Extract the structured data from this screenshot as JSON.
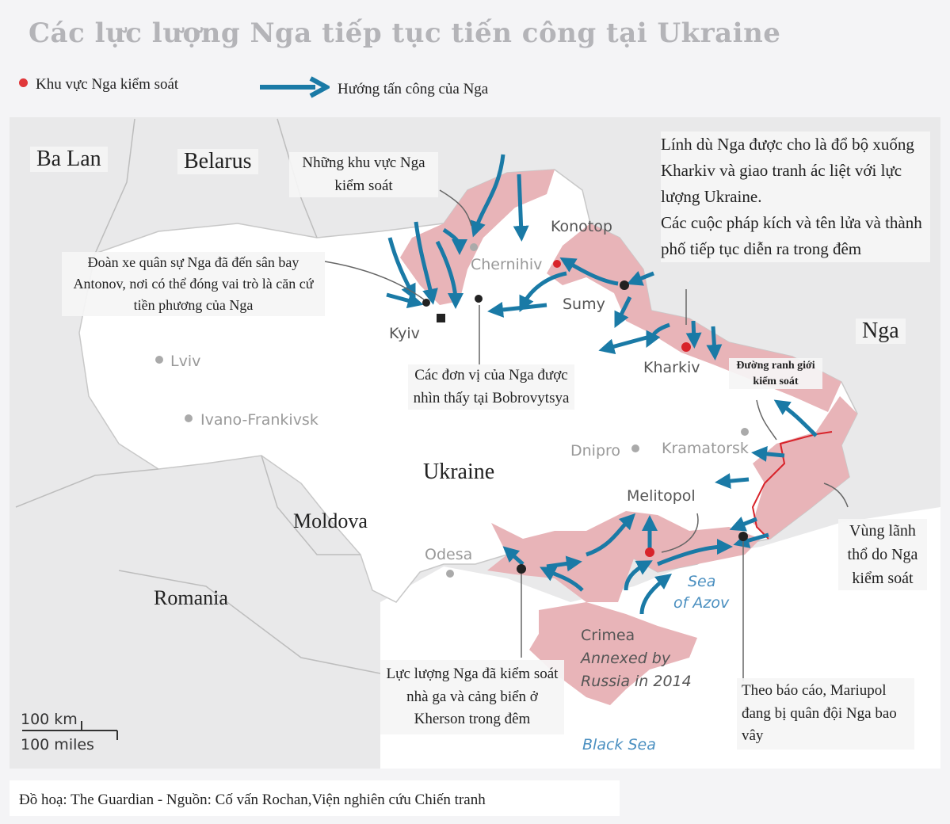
{
  "title": "Các lực lượng Nga tiếp tục tiến công tại Ukraine",
  "legend": {
    "controlled_label": "Khu vực Nga kiểm soát",
    "attack_label": "Hướng tấn công của Nga",
    "controlled_color": "#e0373a",
    "arrow_color": "#1a7aa6"
  },
  "colors": {
    "occupied": "#e8b4b8",
    "ukraine": "#ffffff",
    "neighbors": "#e8e8e8",
    "control_line": "#d8232a"
  },
  "countries": {
    "poland": "Ba Lan",
    "belarus": "Belarus",
    "russia": "Nga",
    "ukraine": "Ukraine",
    "moldova": "Moldova",
    "romania": "Romania"
  },
  "cities": {
    "konotop": "Konotop",
    "chernihiv": "Chernihiv",
    "sumy": "Sumy",
    "kyiv": "Kyiv",
    "kharkiv": "Kharkiv",
    "lviv": "Lviv",
    "ivano_frankivsk": "Ivano-Frankivsk",
    "dnipro": "Dnipro",
    "kramatorsk": "Kramatorsk",
    "melitopol": "Melitopol",
    "odesa": "Odesa",
    "crimea": "Crimea",
    "crimea_note1": "Annexed by",
    "crimea_note2": "Russia in 2014"
  },
  "seas": {
    "azov1": "Sea",
    "azov2": "of Azov",
    "black": "Black Sea"
  },
  "annotations": {
    "controlled_areas": "Những khu vực Nga kiểm soát",
    "convoy": "Đoàn xe quân sự Nga đã đến sân bay Antonov, nơi có thể đóng vai trò là căn cứ tiền phương của Nga",
    "bobrovytsya": "Các đơn vị của Nga được nhìn thấy tại Bobrovytsya",
    "kharkiv": "Lính dù Nga được cho là đổ bộ xuống Kharkiv và giao tranh ác liệt với lực lượng Ukraine.\nCác cuộc pháp kích và tên lửa và thành phố tiếp tục diễn ra trong đêm",
    "control_line": "Đường ranh giới kiểm soát",
    "donbas": "Vùng lãnh thổ do Nga kiểm soát",
    "kherson": "Lực lượng Nga đã kiểm soát nhà ga và cảng biển ở Kherson trong đêm",
    "mariupol": "Theo báo cáo, Mariupol đang bị quân đội Nga bao vây"
  },
  "scale": {
    "km": "100 km",
    "miles": "100 miles"
  },
  "footer": "Đồ hoạ: The Guardian - Nguồn: Cố vấn Rochan,Viện nghiên cứu Chiến tranh"
}
